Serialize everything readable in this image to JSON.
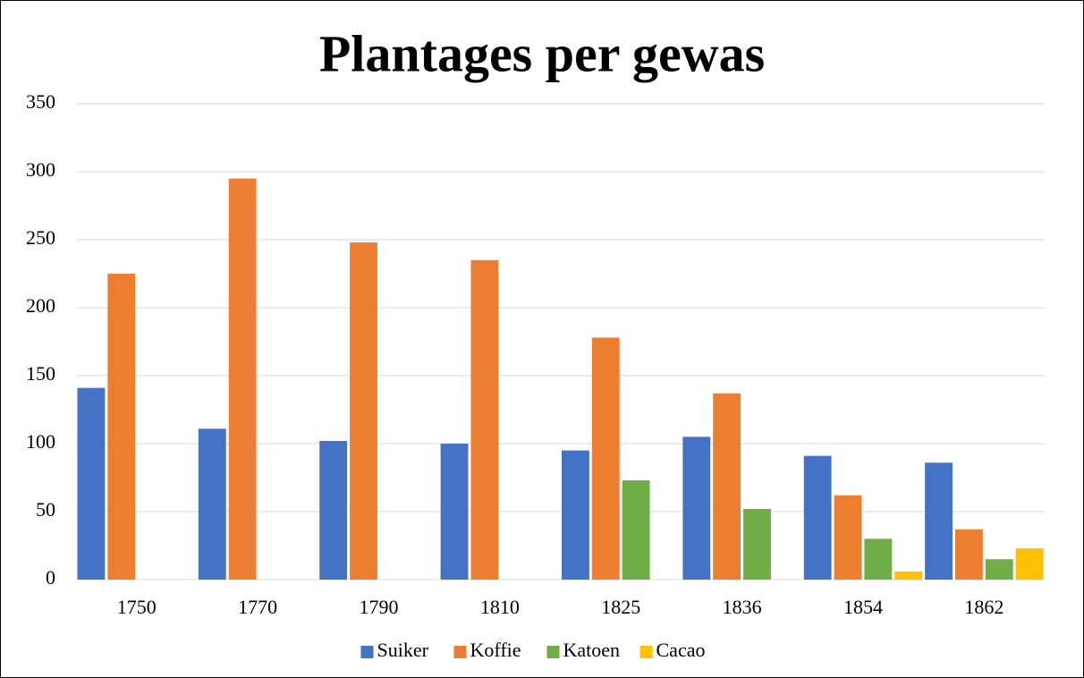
{
  "chart_data": {
    "type": "bar",
    "title": "Plantages per gewas",
    "categories": [
      "1750",
      "1770",
      "1790",
      "1810",
      "1825",
      "1836",
      "1854",
      "1862"
    ],
    "series": [
      {
        "name": "Suiker",
        "color": "#4472c4",
        "values": [
          141,
          111,
          102,
          100,
          95,
          105,
          91,
          86
        ]
      },
      {
        "name": "Koffie",
        "color": "#ed7d31",
        "values": [
          225,
          295,
          248,
          235,
          178,
          137,
          62,
          37
        ]
      },
      {
        "name": "Katoen",
        "color": "#70ad47",
        "values": [
          null,
          null,
          null,
          null,
          73,
          52,
          30,
          15
        ]
      },
      {
        "name": "Cacao",
        "color": "#ffc000",
        "values": [
          null,
          null,
          null,
          null,
          null,
          null,
          6,
          23
        ]
      }
    ],
    "ylim": [
      0,
      350
    ],
    "yticks": [
      0,
      50,
      100,
      150,
      200,
      250,
      300,
      350
    ],
    "grid": true,
    "legend": "bottom"
  }
}
